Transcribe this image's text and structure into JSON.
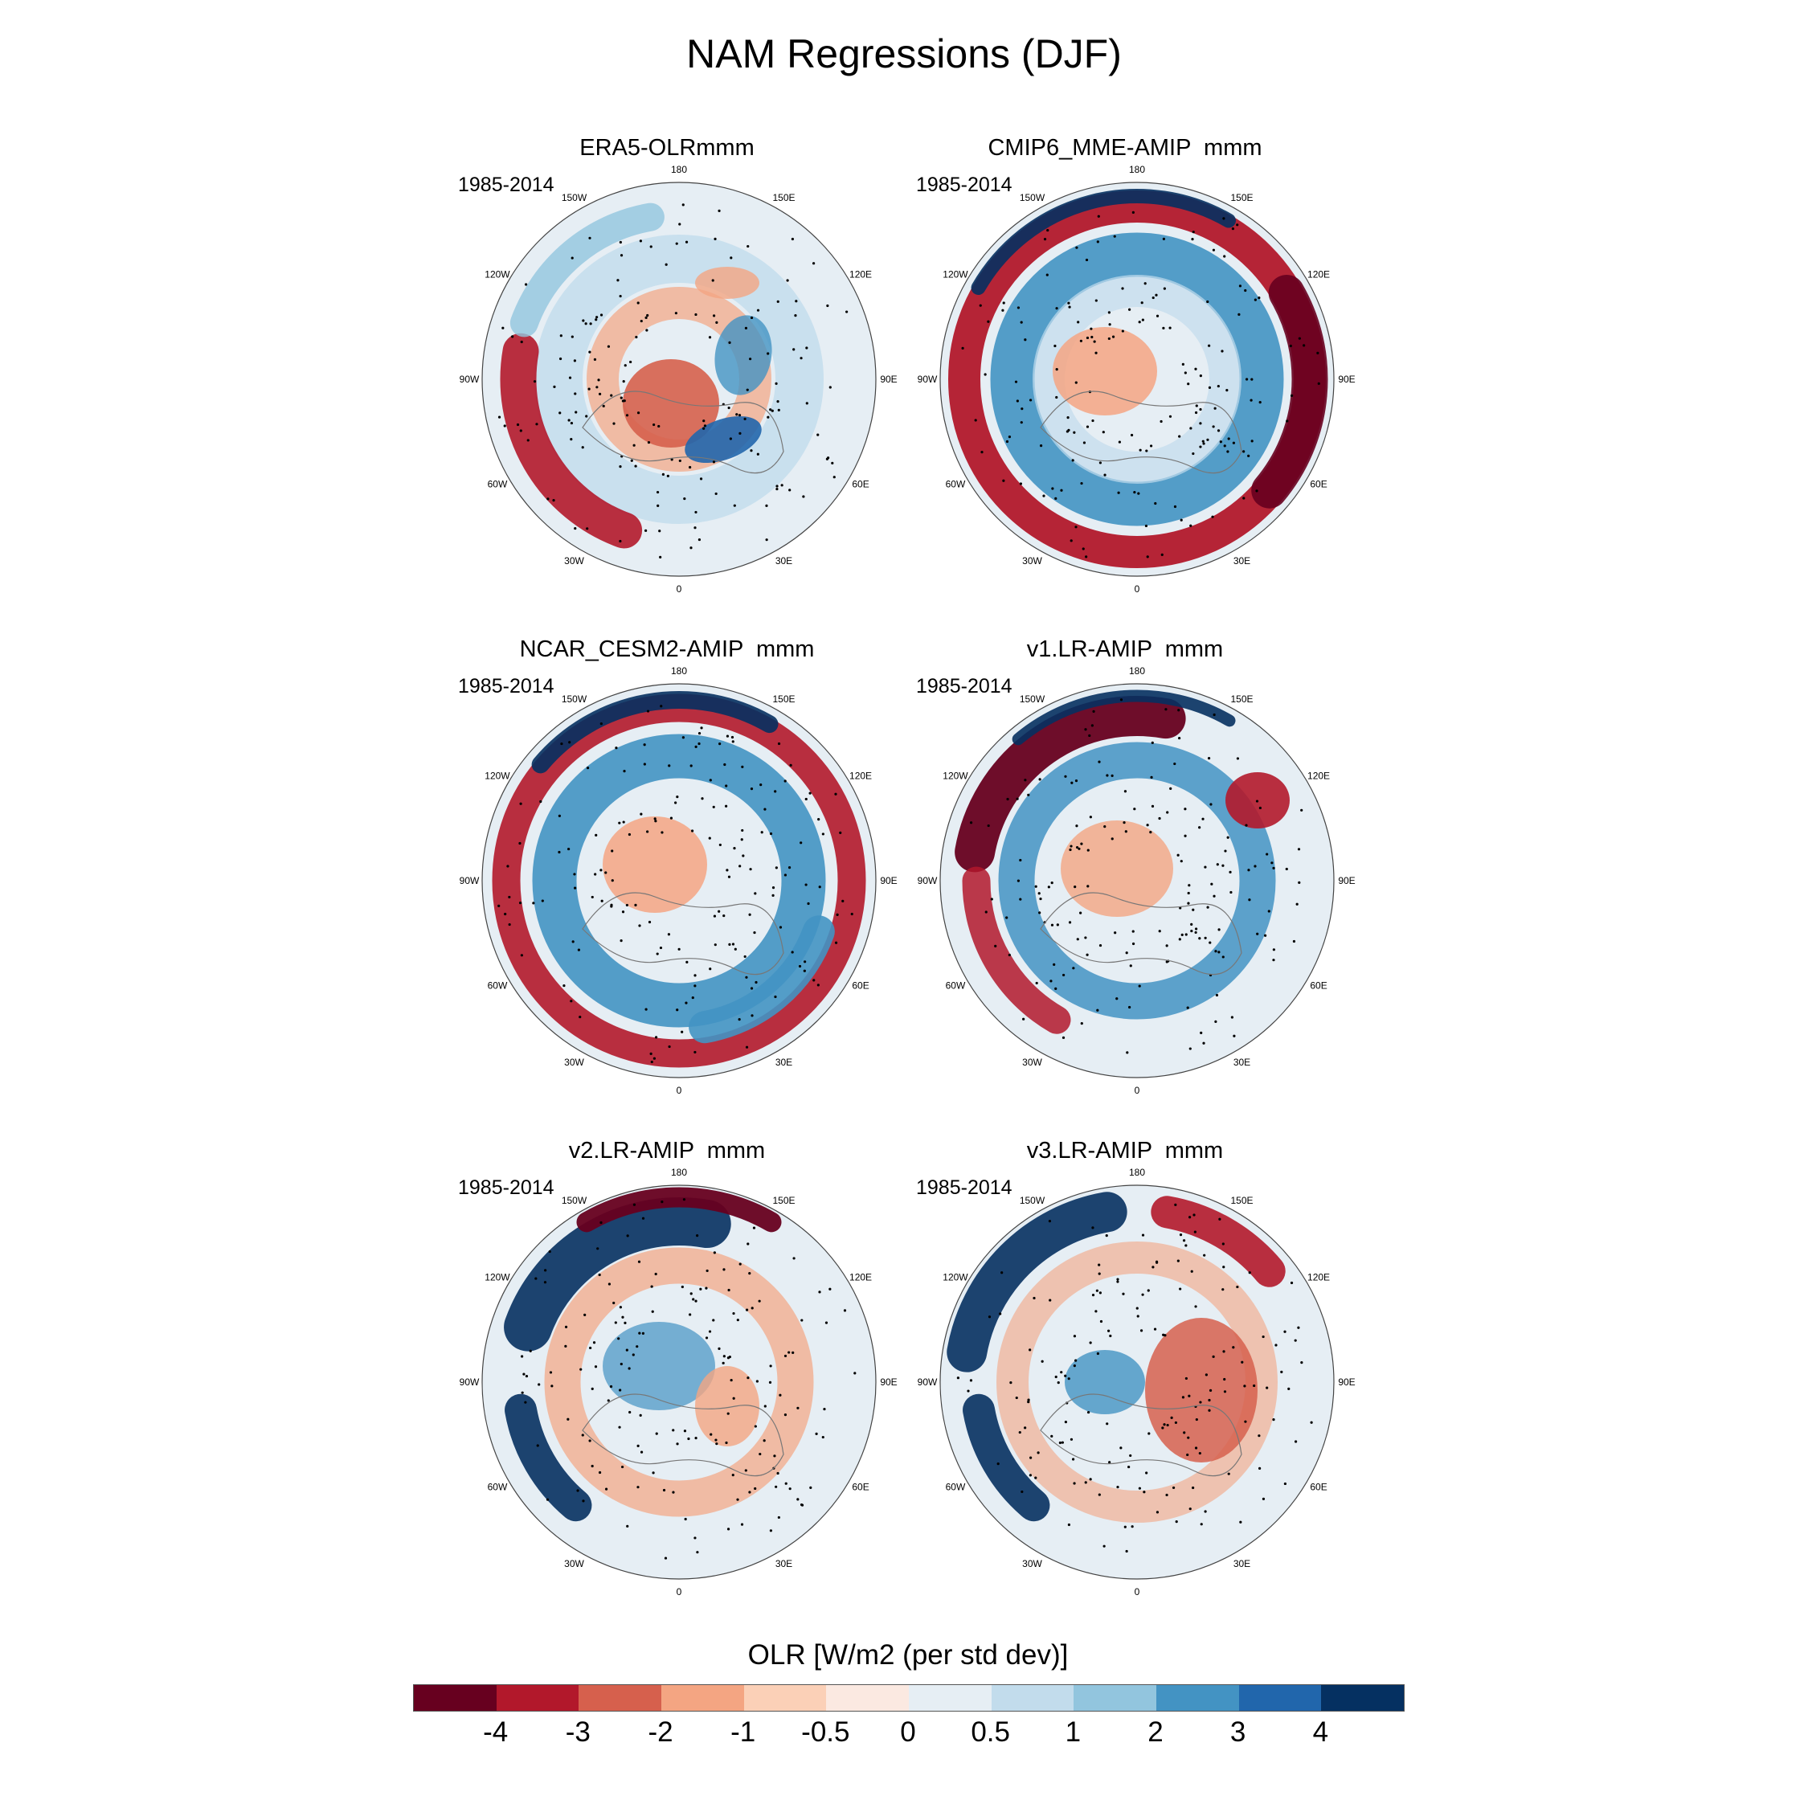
{
  "figure": {
    "title": "NAM Regressions (DJF)",
    "projection": "north-polar-stereographic"
  },
  "longitude_labels": [
    "180",
    "150E",
    "120E",
    "90E",
    "60E",
    "30E",
    "0",
    "30W",
    "60W",
    "90W",
    "120W",
    "150W"
  ],
  "panels": [
    {
      "title": "ERA5-OLRmmm",
      "period": "1985-2014"
    },
    {
      "title": "CMIP6_MME-AMIP  mmm",
      "period": "1985-2014"
    },
    {
      "title": "NCAR_CESM2-AMIP  mmm",
      "period": "1985-2014"
    },
    {
      "title": "v1.LR-AMIP  mmm",
      "period": "1985-2014"
    },
    {
      "title": "v2.LR-AMIP  mmm",
      "period": "1985-2014"
    },
    {
      "title": "v3.LR-AMIP  mmm",
      "period": "1985-2014"
    }
  ],
  "colorbar": {
    "title": "OLR [W/m2 (per std dev)]",
    "tick_labels": [
      "-4",
      "-3",
      "-2",
      "-1",
      "-0.5",
      "0",
      "0.5",
      "1",
      "2",
      "3",
      "4"
    ],
    "colors": [
      "#67001f",
      "#b2182b",
      "#d6604d",
      "#f4a582",
      "#fbd0b7",
      "#fbe9e1",
      "#e6eef4",
      "#c2dcec",
      "#92c5de",
      "#4393c3",
      "#2166ac",
      "#053061"
    ]
  }
}
